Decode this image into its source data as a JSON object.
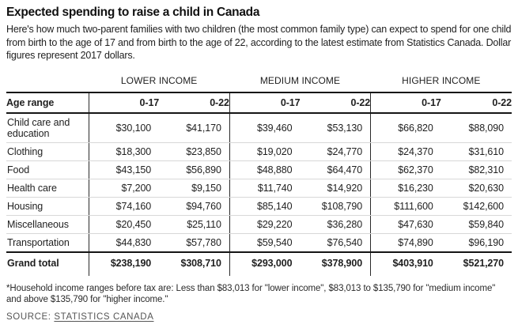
{
  "header": {
    "title": "Expected spending to raise a child in Canada",
    "subtitle": "Here's how much two-parent families with two children (the most common family type) can expect to spend for one child from birth to the age of 17 and from birth to the age of 22, according to the latest estimate from Statistics Canada. Dollar figures represent 2017 dollars."
  },
  "table": {
    "groups": [
      "LOWER INCOME",
      "MEDIUM INCOME",
      "HIGHER INCOME"
    ],
    "age_range_label": "Age range",
    "age_columns": [
      "0-17",
      "0-22"
    ],
    "rows": [
      {
        "label": "Child care and education",
        "values": [
          "$30,100",
          "$41,170",
          "$39,460",
          "$53,130",
          "$66,820",
          "$88,090"
        ]
      },
      {
        "label": "Clothing",
        "values": [
          "$18,300",
          "$23,850",
          "$19,020",
          "$24,770",
          "$24,370",
          "$31,610"
        ]
      },
      {
        "label": "Food",
        "values": [
          "$43,150",
          "$56,890",
          "$48,880",
          "$64,470",
          "$62,370",
          "$82,310"
        ]
      },
      {
        "label": "Health care",
        "values": [
          "$7,200",
          "$9,150",
          "$11,740",
          "$14,920",
          "$16,230",
          "$20,630"
        ]
      },
      {
        "label": "Housing",
        "values": [
          "$74,160",
          "$94,760",
          "$85,140",
          "$108,790",
          "$111,600",
          "$142,600"
        ]
      },
      {
        "label": "Miscellaneous",
        "values": [
          "$20,450",
          "$25,110",
          "$29,220",
          "$36,280",
          "$47,630",
          "$59,840"
        ]
      },
      {
        "label": "Transportation",
        "values": [
          "$44,830",
          "$57,780",
          "$59,540",
          "$76,540",
          "$74,890",
          "$96,190"
        ]
      }
    ],
    "grand_total": {
      "label": "Grand total",
      "values": [
        "$238,190",
        "$308,710",
        "$293,000",
        "$378,900",
        "$403,910",
        "$521,270"
      ]
    }
  },
  "footnote": "*Household income ranges before tax are: Less than $83,013 for \"lower income\", $83,013 to $135,790 for \"medium income\" and above $135,790 for \"higher income.\"",
  "source": {
    "prefix": "SOURCE:",
    "link": "STATISTICS CANADA"
  },
  "colors": {
    "rule_dark": "#151515",
    "rule_light": "#d8d8d8",
    "text": "#1f1f1f",
    "muted": "#555555",
    "background": "#ffffff"
  },
  "chart_data": {
    "type": "table",
    "title": "Expected spending to raise a child in Canada",
    "row_header": "Age range",
    "column_groups": [
      {
        "label": "LOWER INCOME",
        "columns": [
          "0-17",
          "0-22"
        ]
      },
      {
        "label": "MEDIUM INCOME",
        "columns": [
          "0-17",
          "0-22"
        ]
      },
      {
        "label": "HIGHER INCOME",
        "columns": [
          "0-17",
          "0-22"
        ]
      }
    ],
    "categories": [
      "Child care and education",
      "Clothing",
      "Food",
      "Health care",
      "Housing",
      "Miscellaneous",
      "Transportation",
      "Grand total"
    ],
    "series": [
      {
        "name": "Lower income 0-17",
        "values": [
          30100,
          18300,
          43150,
          7200,
          74160,
          20450,
          44830,
          238190
        ]
      },
      {
        "name": "Lower income 0-22",
        "values": [
          41170,
          23850,
          56890,
          9150,
          94760,
          25110,
          57780,
          308710
        ]
      },
      {
        "name": "Medium income 0-17",
        "values": [
          39460,
          19020,
          48880,
          11740,
          85140,
          29220,
          59540,
          293000
        ]
      },
      {
        "name": "Medium income 0-22",
        "values": [
          53130,
          24770,
          64470,
          14920,
          108790,
          36280,
          76540,
          378900
        ]
      },
      {
        "name": "Higher income 0-17",
        "values": [
          66820,
          24370,
          62370,
          16230,
          111600,
          47630,
          74890,
          403910
        ]
      },
      {
        "name": "Higher income 0-22",
        "values": [
          88090,
          31610,
          82310,
          20630,
          142600,
          59840,
          96190,
          521270
        ]
      }
    ],
    "units": "2017 dollars",
    "income_range_definitions": "Less than $83,013 = lower income; $83,013 to $135,790 = medium income; above $135,790 = higher income (household income before tax)"
  }
}
